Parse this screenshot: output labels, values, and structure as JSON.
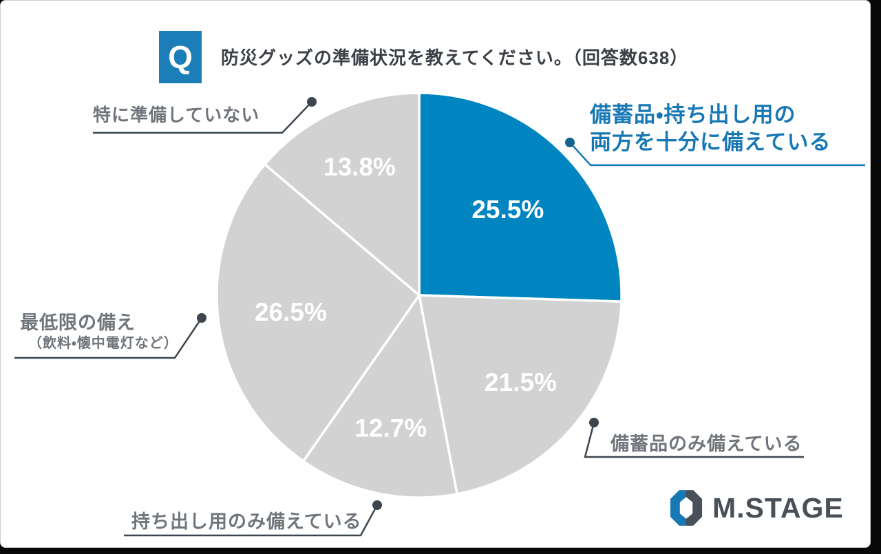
{
  "header": {
    "q_badge": "Q",
    "title": "防災グッズの準備状況を教えてください。（回答数638）"
  },
  "chart_data": {
    "type": "pie",
    "title": "防災グッズの準備状況を教えてください。",
    "responses_label": "回答数638",
    "start_angle_deg": 0,
    "clockwise": true,
    "colors": {
      "highlight_slice": "#0085c1",
      "default_slice": "#d2d2d2",
      "separator": "#ffffff",
      "percent_text": "#ffffff"
    },
    "slices": [
      {
        "label": "備蓄品・持ち出し用の両方を十分に備えている",
        "value": 25.5,
        "display": "25.5%",
        "color": "#0085c1",
        "label_r_frac": 0.61
      },
      {
        "label": "備蓄品のみ備えている",
        "value": 21.5,
        "display": "21.5%",
        "color": "#d2d2d2",
        "label_r_frac": 0.66
      },
      {
        "label": "持ち出し用のみ備えている",
        "value": 12.7,
        "display": "12.7%",
        "color": "#d2d2d2",
        "label_r_frac": 0.67
      },
      {
        "label": "最低限の備え（飲料・懐中電灯など）",
        "value": 26.5,
        "display": "26.5%",
        "color": "#d2d2d2",
        "label_r_frac": 0.64
      },
      {
        "label": "特に準備していない",
        "value": 13.8,
        "display": "13.8%",
        "color": "#d2d2d2",
        "label_r_frac": 0.7
      }
    ]
  },
  "callouts": {
    "top_right_line1": "備蓄品・持ち出し用の",
    "top_right_line2": "両方を十分に備えている",
    "top_left": "特に準備していない",
    "left_line1": "最低限の備え",
    "left_line2": "（飲料・懐中電灯など）",
    "bottom_left": "持ち出し用のみ備えている",
    "bottom_right": "備蓄品のみ備えている"
  },
  "logo": {
    "text": "M.STAGE",
    "icon_blue": "#1778b5",
    "icon_dark": "#4a5058"
  }
}
